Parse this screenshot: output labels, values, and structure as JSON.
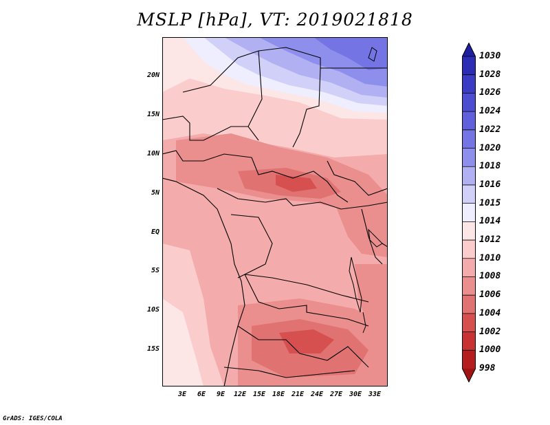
{
  "title": "MSLP [hPa], VT: 2019021818",
  "credit": "GrADS: IGES/COLA",
  "map": {
    "lat_labels": [
      "20N",
      "15N",
      "10N",
      "5N",
      "EQ",
      "5S",
      "10S",
      "15S"
    ],
    "lon_labels": [
      "3E",
      "6E",
      "9E",
      "12E",
      "15E",
      "18E",
      "21E",
      "24E",
      "27E",
      "30E",
      "33E"
    ]
  },
  "colorbar": {
    "levels": [
      "1030",
      "1028",
      "1026",
      "1024",
      "1022",
      "1020",
      "1018",
      "1016",
      "1015",
      "1014",
      "1012",
      "1010",
      "1008",
      "1006",
      "1004",
      "1002",
      "1000",
      "998"
    ],
    "colors": [
      "#1e1ea0",
      "#2c2cb4",
      "#3b3bc4",
      "#4d4dd2",
      "#6060dc",
      "#7474e4",
      "#8e8eec",
      "#b0b0f2",
      "#d0d0f8",
      "#eeeefe",
      "#fde6e6",
      "#fbcccc",
      "#f4abab",
      "#ea8e8e",
      "#e07272",
      "#d65050",
      "#c83232",
      "#b41e1e",
      "#a01414"
    ]
  }
}
